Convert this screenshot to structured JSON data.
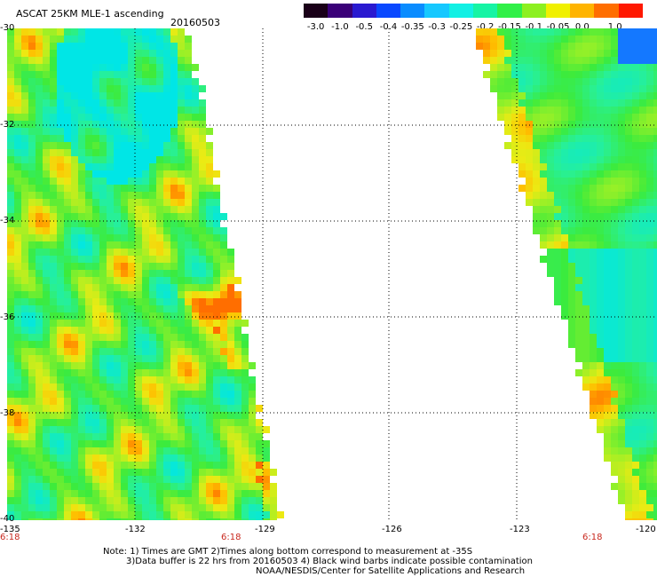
{
  "header": {
    "title": "ASCAT 25KM MLE-1 ascending",
    "date": "20160503"
  },
  "colorbar": {
    "labels": [
      "-3.0",
      "-1.0",
      "-0.5",
      "-0.4",
      "-0.35",
      "-0.3",
      "-0.25",
      "-0.2",
      "-0.15",
      "-0.1",
      "-0.05",
      "0.0",
      "1.0"
    ],
    "colors": [
      "#1a0018",
      "#3a0078",
      "#2a1ad0",
      "#0a48ff",
      "#0a8cff",
      "#16c8ff",
      "#12f0e4",
      "#16f4a4",
      "#30f048",
      "#8cf020",
      "#f0f000",
      "#ffb400",
      "#ff6e00",
      "#ff1800"
    ]
  },
  "axes": {
    "lat_ticks": [
      "-30",
      "-32",
      "-34",
      "-36",
      "-38",
      "-40"
    ],
    "lon_ticks": [
      "-135",
      "-132",
      "-129",
      "-126",
      "-123",
      "-120"
    ],
    "lat_range": [
      -30,
      -40
    ],
    "lon_range": [
      -135,
      -120
    ]
  },
  "pass_times": [
    "6:18",
    "6:18",
    "6:18"
  ],
  "notes": {
    "line1": "Note: 1) Times are GMT 2)Times along bottom correspond to measurement at -35S",
    "line2": "3)Data buffer is 22 hrs from 20160503 4) Black wind barbs indicate possible contamination",
    "line3": "NOAA/NESDIS/Center for Satellite Applications and Research"
  }
}
